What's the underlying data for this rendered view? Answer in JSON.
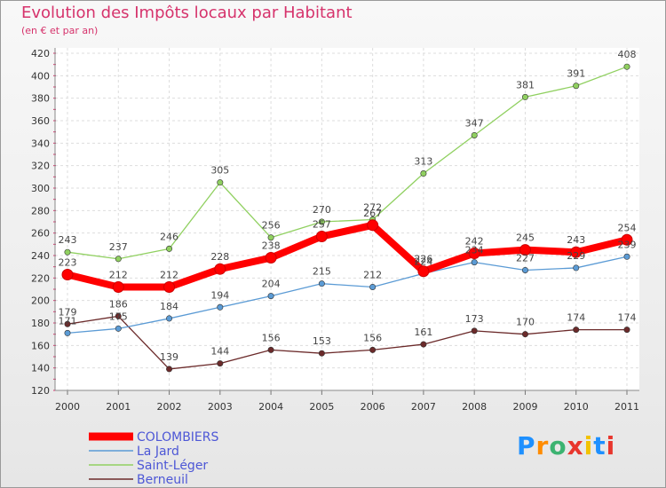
{
  "header": {
    "title": "Evolution des Impôts locaux par Habitant",
    "subtitle": "(en € et par an)"
  },
  "logo": {
    "text": "Proxiti",
    "colors": [
      "#1e90ff",
      "#ff8c00",
      "#3cb371",
      "#e8362d",
      "#f2c200",
      "#1e90ff",
      "#e8362d"
    ]
  },
  "chart_data": {
    "type": "line",
    "x": [
      "2000",
      "2001",
      "2002",
      "2003",
      "2004",
      "2005",
      "2006",
      "2007",
      "2008",
      "2009",
      "2010",
      "2011"
    ],
    "ylim": [
      120,
      420
    ],
    "yticks": [
      120,
      140,
      160,
      180,
      200,
      220,
      240,
      260,
      280,
      300,
      320,
      340,
      360,
      380,
      400,
      420
    ],
    "grid": true,
    "legend_position": "bottom-left",
    "series": [
      {
        "name": "COLOMBIERS",
        "color": "#ff0000",
        "values": [
          223,
          212,
          212,
          228,
          238,
          257,
          267,
          226,
          242,
          245,
          243,
          254
        ]
      },
      {
        "name": "La Jard",
        "color": "#5b9bd5",
        "values": [
          171,
          175,
          184,
          194,
          204,
          215,
          212,
          224,
          234,
          227,
          229,
          239
        ]
      },
      {
        "name": "Saint-Léger",
        "color": "#90d060",
        "values": [
          243,
          237,
          246,
          305,
          256,
          270,
          272,
          313,
          347,
          381,
          391,
          408
        ]
      },
      {
        "name": "Berneuil",
        "color": "#6b2a2a",
        "values": [
          179,
          186,
          139,
          144,
          156,
          153,
          156,
          161,
          173,
          170,
          174,
          174
        ]
      }
    ]
  }
}
